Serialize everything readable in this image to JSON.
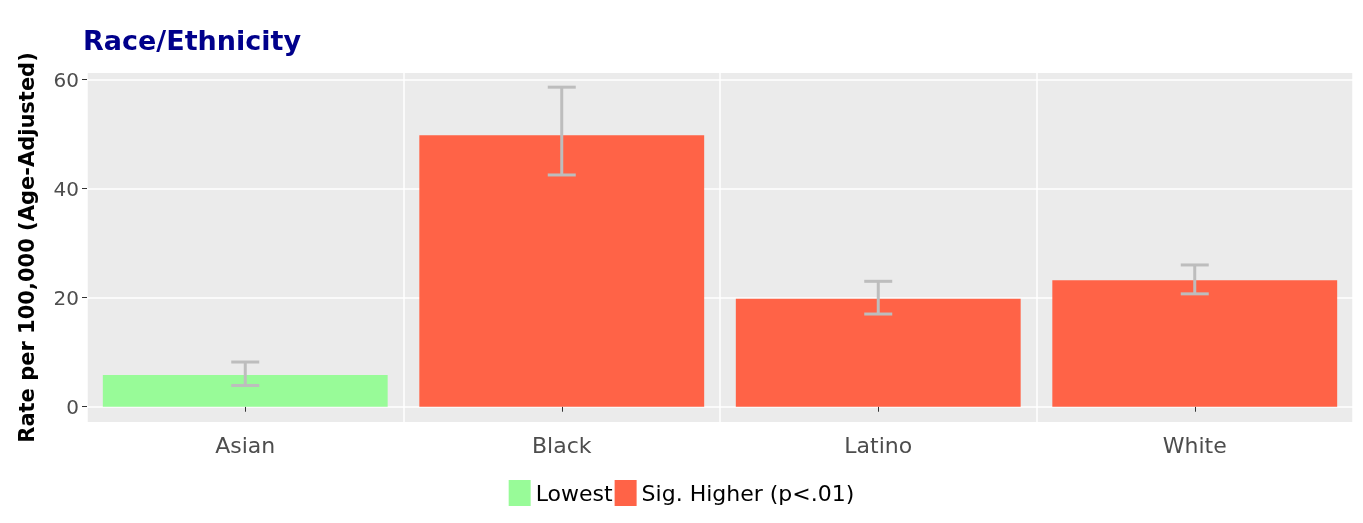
{
  "chart_data": {
    "type": "bar",
    "title": "Race/Ethnicity",
    "ylabel": "Rate per 100,000 (Age-Adjusted)",
    "categories": [
      "Asian",
      "Black",
      "Latino",
      "White"
    ],
    "series": [
      {
        "name": "Lowest",
        "color": "#98fb98",
        "values": [
          5.8,
          null,
          null,
          null
        ],
        "errors": [
          [
            3.9,
            8.2
          ],
          null,
          null,
          null
        ]
      },
      {
        "name": "Sig. Higher (p<.01)",
        "color": "#ff6347",
        "values": [
          null,
          49.8,
          19.8,
          23.2
        ],
        "errors": [
          null,
          [
            42.5,
            58.6
          ],
          [
            17.0,
            23.0
          ],
          [
            20.7,
            26.0
          ]
        ]
      }
    ],
    "ylim": [
      -2.8,
      61.2
    ],
    "yticks": [
      0,
      20,
      40,
      60
    ],
    "grid": true,
    "legend": "bottom"
  }
}
